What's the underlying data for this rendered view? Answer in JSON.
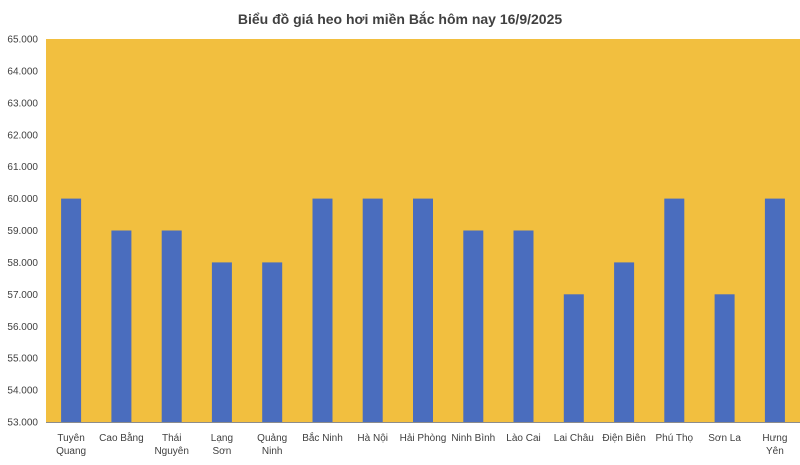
{
  "chart_data": {
    "type": "bar",
    "title": "Biểu đồ giá heo hơi miền Bắc hôm nay 16/9/2025",
    "xlabel": "",
    "ylabel": "",
    "categories": [
      [
        "Tuyên",
        "Quang"
      ],
      [
        "Cao Bằng"
      ],
      [
        "Thái",
        "Nguyên"
      ],
      [
        "Lạng",
        "Sơn"
      ],
      [
        "Quảng",
        "Ninh"
      ],
      [
        "Bắc Ninh"
      ],
      [
        "Hà Nội"
      ],
      [
        "Hải Phòng"
      ],
      [
        "Ninh Bình"
      ],
      [
        "Lào Cai"
      ],
      [
        "Lai Châu"
      ],
      [
        "Điện Biên"
      ],
      [
        "Phú Thọ"
      ],
      [
        "Sơn La"
      ],
      [
        "Hưng",
        "Yên"
      ]
    ],
    "values": [
      60000,
      59000,
      59000,
      58000,
      58000,
      60000,
      60000,
      60000,
      59000,
      59000,
      57000,
      58000,
      60000,
      57000,
      60000
    ],
    "ylim": [
      53000,
      65000
    ],
    "yticks": [
      "53.000",
      "54.000",
      "55.000",
      "56.000",
      "57.000",
      "58.000",
      "59.000",
      "60.000",
      "61.000",
      "62.000",
      "63.000",
      "64.000",
      "65.000"
    ],
    "grid": false,
    "legend": "none",
    "colors": {
      "plot_background": "#F2BF3F",
      "bar": "#4A6DBE",
      "text": "#404040",
      "axis": "#8C8C8C"
    }
  }
}
